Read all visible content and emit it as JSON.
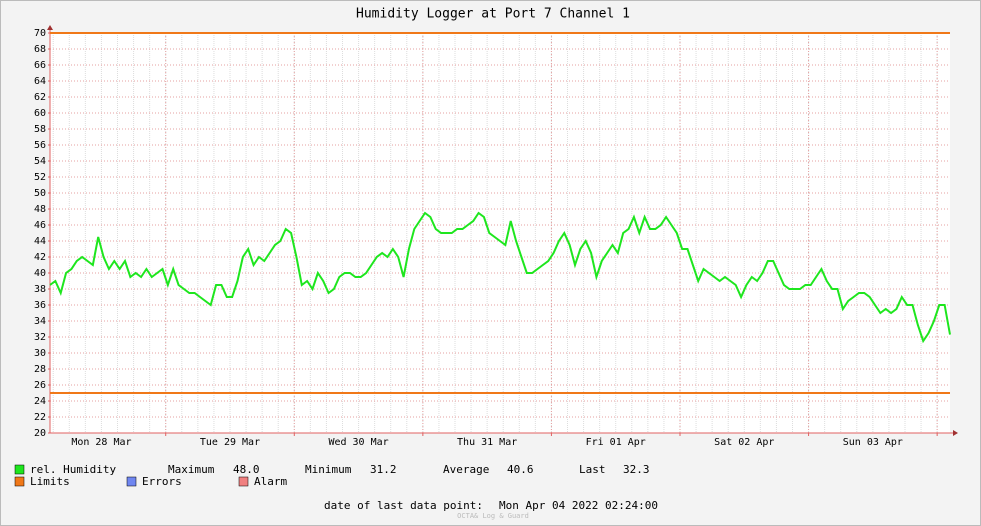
{
  "chart_data": {
    "type": "line",
    "title": "Humidity Logger at Port 7 Channel 1",
    "series": [
      {
        "name": "rel. Humidity",
        "color": "#1ee61e",
        "values": [
          38.5,
          39,
          37.5,
          40,
          40.5,
          41.5,
          42,
          41.5,
          41,
          44.5,
          42,
          40.5,
          41.5,
          40.5,
          41.5,
          39.5,
          40,
          39.5,
          40.5,
          39.5,
          40,
          40.5,
          38.5,
          40.5,
          38.5,
          38,
          37.5,
          37.5,
          37,
          36.5,
          36,
          38.5,
          38.5,
          37,
          37,
          39,
          42,
          43,
          41,
          42,
          41.5,
          42.5,
          43.5,
          44,
          45.5,
          45,
          42,
          38.5,
          39,
          38,
          40,
          39,
          37.5,
          38,
          39.5,
          40,
          40,
          39.5,
          39.5,
          40,
          41,
          42,
          42.5,
          42,
          43,
          42,
          39.5,
          43,
          45.5,
          46.5,
          47.5,
          47,
          45.5,
          45,
          45,
          45,
          45.5,
          45.5,
          46,
          46.5,
          47.5,
          47,
          45,
          44.5,
          44,
          43.5,
          46.5,
          44,
          42,
          40,
          40,
          40.5,
          41,
          41.5,
          42.5,
          44,
          45,
          43.5,
          41,
          43,
          44,
          42.5,
          39.5,
          41.5,
          42.5,
          43.5,
          42.5,
          45,
          45.5,
          47,
          45,
          47,
          45.5,
          45.5,
          46,
          47,
          46,
          45,
          43,
          43,
          41,
          39,
          40.5,
          40,
          39.5,
          39,
          39.5,
          39,
          38.5,
          37,
          38.5,
          39.5,
          39,
          40,
          41.5,
          41.5,
          40,
          38.5,
          38,
          38,
          38,
          38.5,
          38.5,
          39.5,
          40.5,
          39,
          38,
          38,
          35.5,
          36.5,
          37,
          37.5,
          37.5,
          37,
          36,
          35,
          35.5,
          35,
          35.5,
          37,
          36,
          36,
          33.5,
          31.5,
          32.5,
          34,
          36,
          36,
          32.3
        ]
      }
    ],
    "ylim": [
      20,
      70
    ],
    "yticks": [
      20,
      22,
      24,
      26,
      28,
      30,
      32,
      34,
      36,
      38,
      40,
      42,
      44,
      46,
      48,
      50,
      52,
      54,
      56,
      58,
      60,
      62,
      64,
      66,
      68,
      70
    ],
    "xlim": [
      0,
      168
    ],
    "xticks": [
      {
        "value": 9.6,
        "label": "Mon 28 Mar"
      },
      {
        "value": 33.6,
        "label": "Tue 29 Mar"
      },
      {
        "value": 57.6,
        "label": "Wed 30 Mar"
      },
      {
        "value": 81.6,
        "label": "Thu 31 Mar"
      },
      {
        "value": 105.6,
        "label": "Fri 01 Apr"
      },
      {
        "value": 129.6,
        "label": "Sat 02 Apr"
      },
      {
        "value": 153.6,
        "label": "Sun 03 Apr"
      }
    ],
    "xgrid": [
      21.6,
      45.6,
      69.6,
      93.6,
      117.6,
      141.6,
      165.6
    ],
    "grid": true,
    "limits": {
      "name": "Limits",
      "color": "#f07818",
      "values": [
        70,
        25
      ]
    },
    "stats": [
      {
        "name": "Maximum",
        "value": "48.0"
      },
      {
        "name": "Minimum",
        "value": "31.2"
      },
      {
        "name": "Average",
        "value": "40.6"
      },
      {
        "name": "Last",
        "value": "32.3"
      }
    ],
    "legend_extra": [
      {
        "name": "Errors",
        "color": "#6f86f0"
      },
      {
        "name": "Alarm",
        "color": "#f08080"
      }
    ],
    "footer": {
      "label": "date of last data point:",
      "value": "Mon Apr 04 2022 02:24:00"
    },
    "credit": "OCTA& Log & Guard"
  }
}
